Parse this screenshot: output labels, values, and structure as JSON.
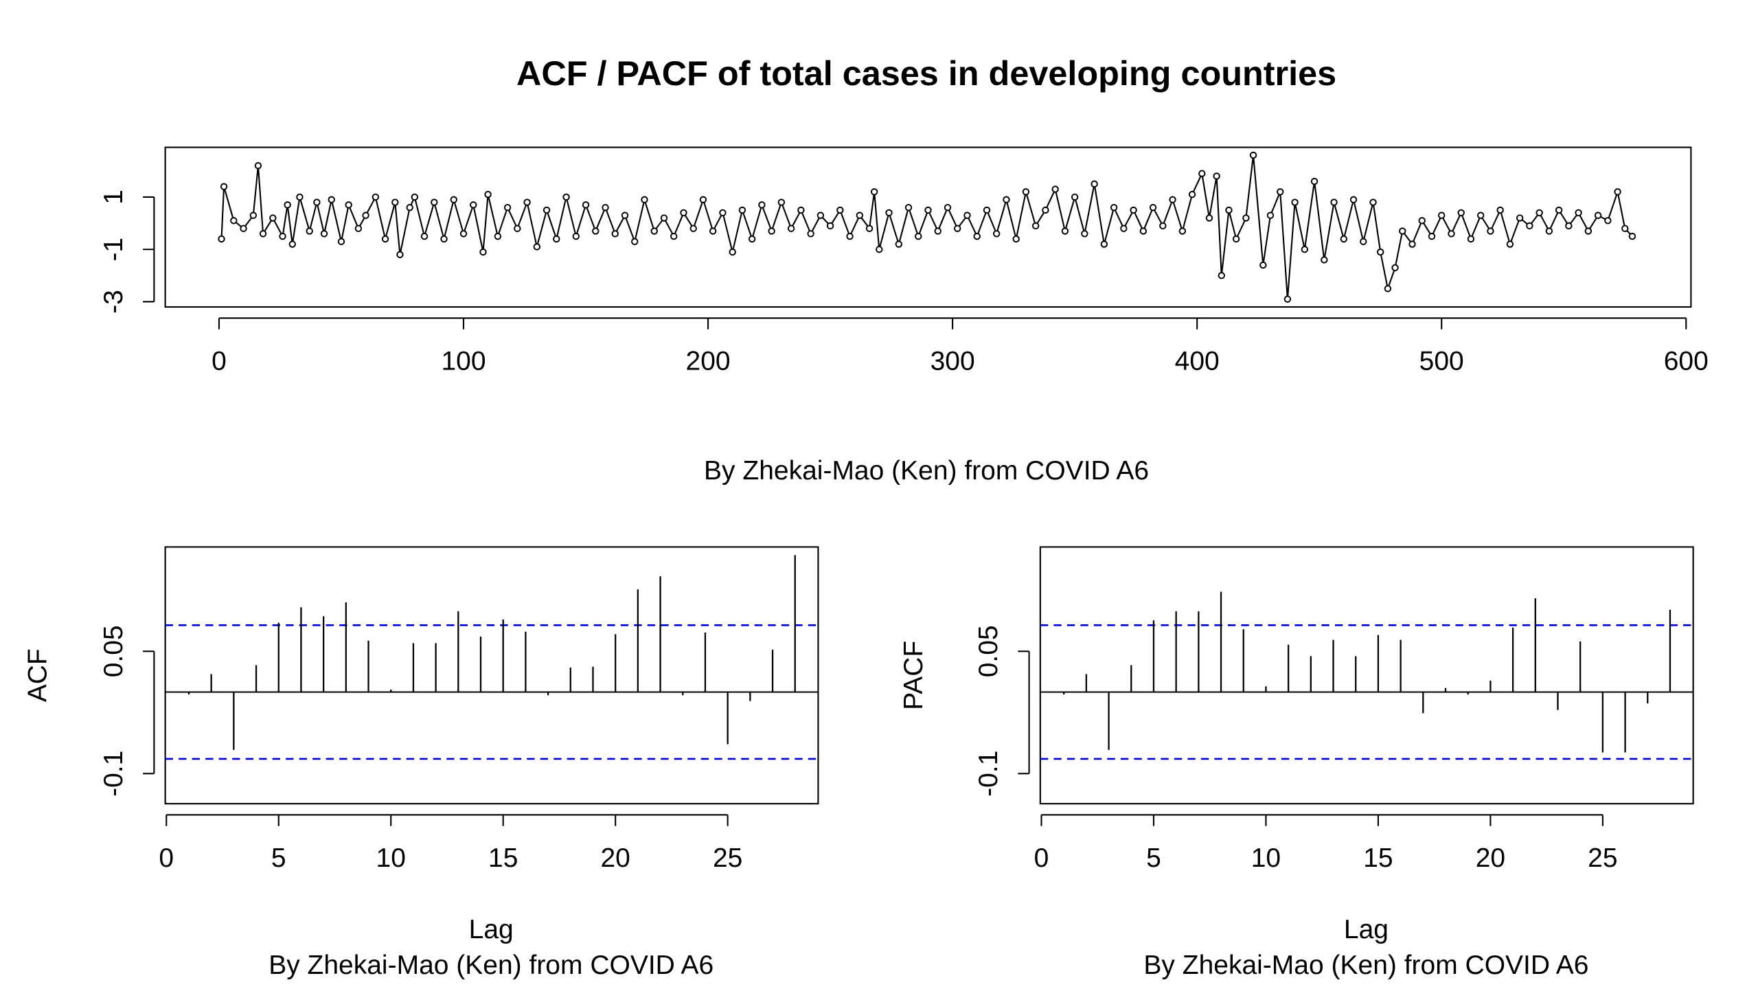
{
  "chart_data": [
    {
      "type": "line",
      "title": "ACF / PACF of total cases in developing countries",
      "subtitle": "By Zhekai-Mao (Ken) from COVID A6",
      "color": "#000000",
      "x": [
        1,
        2,
        6,
        10,
        14,
        16,
        18,
        22,
        26,
        28,
        30,
        33,
        37,
        40,
        43,
        46,
        50,
        53,
        57,
        60,
        64,
        68,
        72,
        74,
        78,
        80,
        84,
        88,
        92,
        96,
        100,
        104,
        108,
        110,
        114,
        118,
        122,
        126,
        130,
        134,
        138,
        142,
        146,
        150,
        154,
        158,
        162,
        166,
        170,
        174,
        178,
        182,
        186,
        190,
        194,
        198,
        202,
        206,
        210,
        214,
        218,
        222,
        226,
        230,
        234,
        238,
        242,
        246,
        250,
        254,
        258,
        262,
        266,
        268,
        270,
        274,
        278,
        282,
        286,
        290,
        294,
        298,
        302,
        306,
        310,
        314,
        318,
        322,
        326,
        330,
        334,
        338,
        342,
        346,
        350,
        354,
        358,
        362,
        366,
        370,
        374,
        378,
        382,
        386,
        390,
        394,
        398,
        402,
        405,
        408,
        410,
        413,
        416,
        420,
        423,
        427,
        430,
        434,
        437,
        440,
        444,
        448,
        452,
        456,
        460,
        464,
        468,
        472,
        475,
        478,
        481,
        484,
        488,
        492,
        496,
        500,
        504,
        508,
        512,
        516,
        520,
        524,
        528,
        532,
        536,
        540,
        544,
        548,
        552,
        556,
        560,
        564,
        568,
        572,
        575,
        578
      ],
      "values": [
        -0.6,
        1.4,
        0.1,
        -0.2,
        0.3,
        2.2,
        -0.4,
        0.2,
        -0.5,
        0.7,
        -0.8,
        1.0,
        -0.3,
        0.8,
        -0.4,
        0.9,
        -0.7,
        0.7,
        -0.2,
        0.3,
        1.0,
        -0.6,
        0.8,
        -1.2,
        0.6,
        1.0,
        -0.5,
        0.8,
        -0.6,
        0.9,
        -0.4,
        0.7,
        -1.1,
        1.1,
        -0.5,
        0.6,
        -0.2,
        0.8,
        -0.9,
        0.5,
        -0.6,
        1.0,
        -0.5,
        0.7,
        -0.3,
        0.6,
        -0.4,
        0.3,
        -0.7,
        0.9,
        -0.3,
        0.2,
        -0.5,
        0.4,
        -0.2,
        0.9,
        -0.3,
        0.4,
        -1.1,
        0.5,
        -0.6,
        0.7,
        -0.3,
        0.8,
        -0.2,
        0.5,
        -0.4,
        0.3,
        -0.1,
        0.5,
        -0.5,
        0.3,
        -0.2,
        1.2,
        -1.0,
        0.4,
        -0.8,
        0.6,
        -0.5,
        0.5,
        -0.3,
        0.6,
        -0.2,
        0.3,
        -0.5,
        0.5,
        -0.4,
        0.9,
        -0.6,
        1.2,
        -0.1,
        0.5,
        1.3,
        -0.3,
        1.0,
        -0.4,
        1.5,
        -0.8,
        0.6,
        -0.2,
        0.5,
        -0.3,
        0.6,
        -0.1,
        0.9,
        -0.3,
        1.1,
        1.9,
        0.2,
        1.8,
        -2.0,
        0.5,
        -0.6,
        0.2,
        2.6,
        -1.6,
        0.3,
        1.2,
        -2.9,
        0.8,
        -1.0,
        1.6,
        -1.4,
        0.8,
        -0.6,
        0.9,
        -0.7,
        0.8,
        -1.1,
        -2.5,
        -1.7,
        -0.3,
        -0.8,
        0.1,
        -0.5,
        0.3,
        -0.4,
        0.4,
        -0.6,
        0.3,
        -0.3,
        0.5,
        -0.8,
        0.2,
        -0.1,
        0.4,
        -0.3,
        0.5,
        -0.1,
        0.4,
        -0.3,
        0.3,
        0.1,
        1.2,
        -0.2,
        -0.5
      ],
      "xlim": [
        -22,
        602
      ],
      "xticks": [
        0,
        100,
        200,
        300,
        400,
        500,
        600
      ],
      "ylim": [
        -3.2,
        2.9
      ],
      "yticks": [
        -3,
        -1,
        1
      ]
    },
    {
      "type": "bar",
      "ylabel": "ACF",
      "xlabel": "Lag",
      "subtitle": "By Zhekai-Mao (Ken) from COVID A6",
      "color": "#000000",
      "x": [
        1,
        2,
        3,
        4,
        5,
        6,
        7,
        8,
        9,
        10,
        11,
        12,
        13,
        14,
        15,
        16,
        17,
        18,
        19,
        20,
        21,
        22,
        23,
        24,
        25,
        26,
        27,
        28
      ],
      "values": [
        -0.003,
        0.022,
        -0.071,
        0.033,
        0.085,
        0.104,
        0.093,
        0.11,
        0.063,
        0.003,
        0.06,
        0.06,
        0.099,
        0.068,
        0.089,
        0.074,
        -0.004,
        0.03,
        0.031,
        0.071,
        0.126,
        0.142,
        -0.004,
        0.073,
        -0.064,
        -0.011,
        0.052,
        0.168
      ],
      "conf_bounds": [
        0.082,
        -0.082
      ],
      "conf_color": "#0000cd",
      "xlim": [
        -0.05,
        29.03
      ],
      "xticks": [
        0,
        5,
        10,
        15,
        20,
        25
      ],
      "ylim": [
        -0.137,
        0.178
      ],
      "yticks": [
        -0.1,
        0.05
      ]
    },
    {
      "type": "bar",
      "ylabel": "PACF",
      "xlabel": "Lag",
      "subtitle": "By Zhekai-Mao (Ken) from COVID A6",
      "color": "#000000",
      "x": [
        1,
        2,
        3,
        4,
        5,
        6,
        7,
        8,
        9,
        10,
        11,
        12,
        13,
        14,
        15,
        16,
        17,
        18,
        19,
        20,
        21,
        22,
        23,
        24,
        25,
        26,
        27,
        28
      ],
      "values": [
        -0.003,
        0.022,
        -0.071,
        0.033,
        0.088,
        0.099,
        0.099,
        0.123,
        0.077,
        0.007,
        0.058,
        0.044,
        0.064,
        0.044,
        0.07,
        0.064,
        -0.026,
        0.005,
        -0.003,
        0.014,
        0.079,
        0.115,
        -0.022,
        0.062,
        -0.074,
        -0.074,
        -0.014,
        0.101
      ],
      "conf_bounds": [
        0.082,
        -0.082
      ],
      "conf_color": "#0000cd",
      "xlim": [
        -0.05,
        29.03
      ],
      "xticks": [
        0,
        5,
        10,
        15,
        20,
        25
      ],
      "ylim": [
        -0.137,
        0.178
      ],
      "yticks": [
        -0.1,
        0.05
      ]
    }
  ]
}
